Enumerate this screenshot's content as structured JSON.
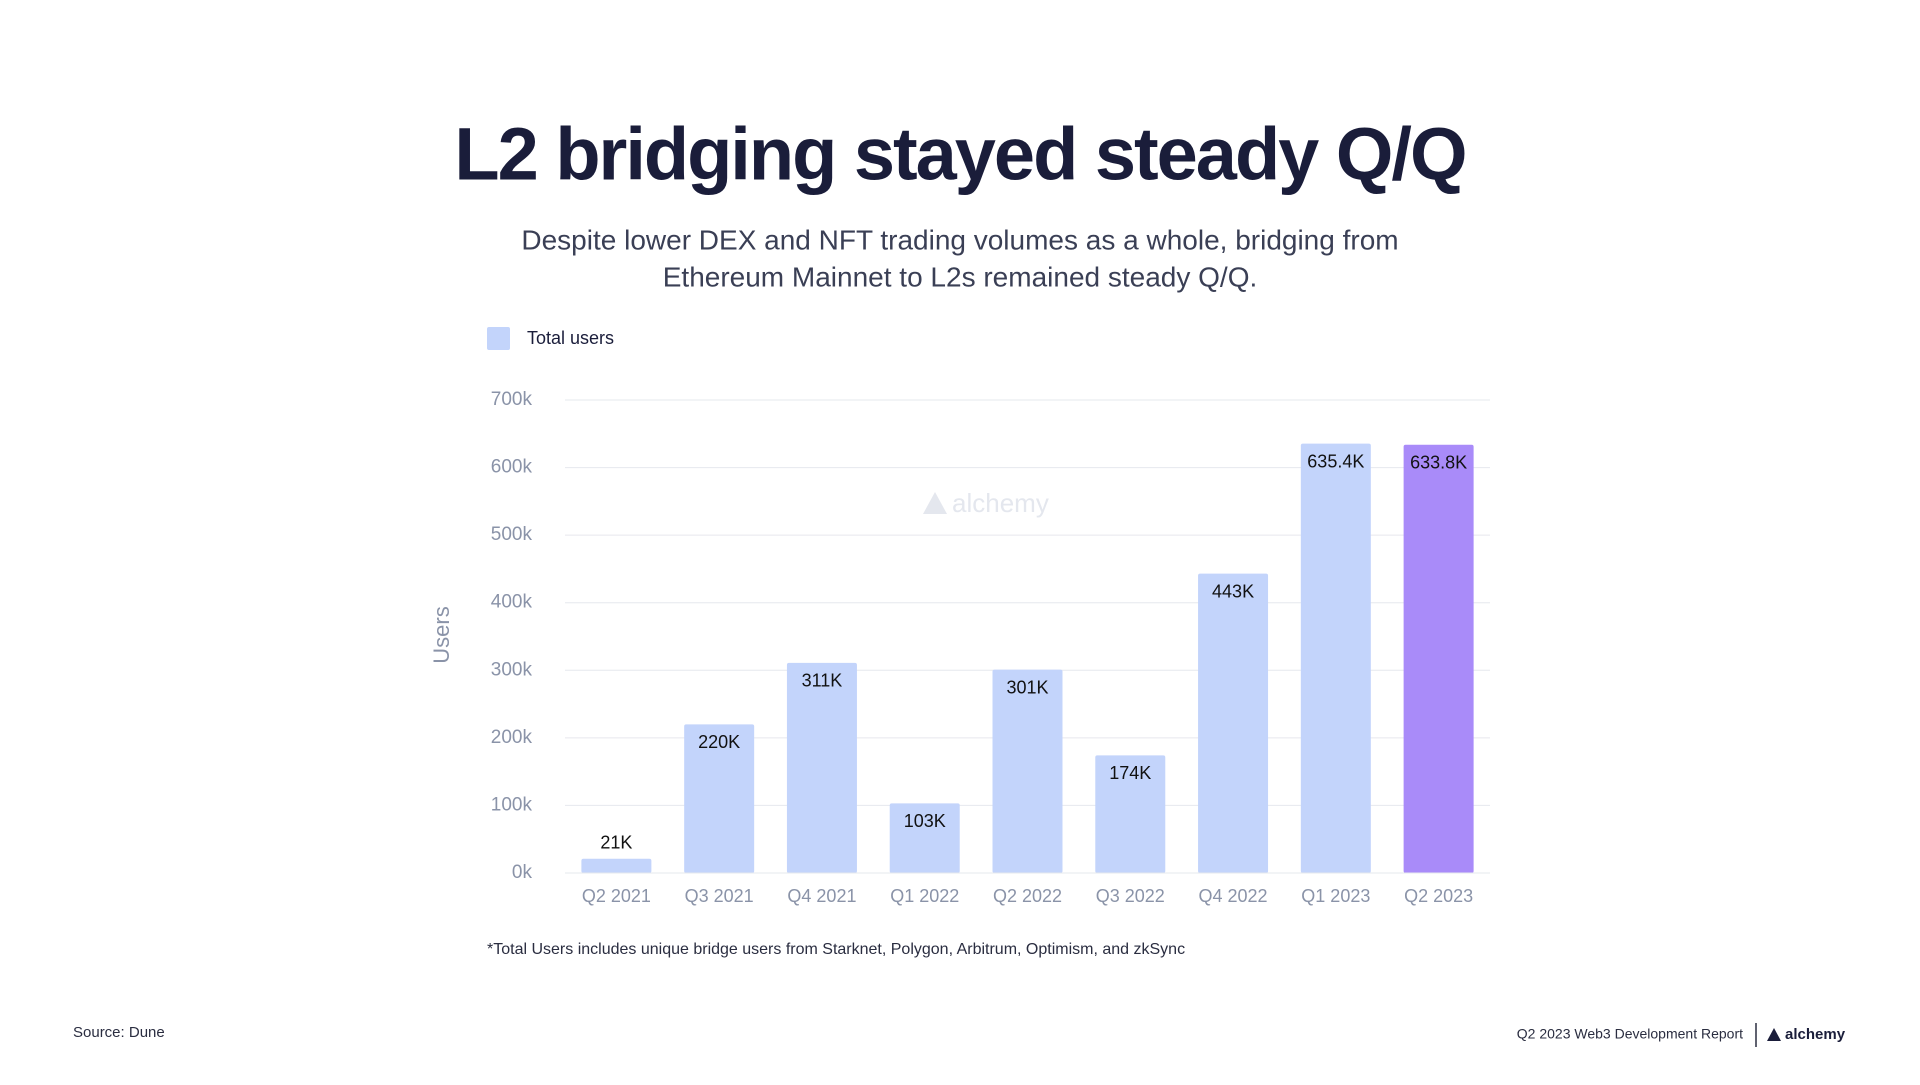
{
  "chart_data": {
    "type": "bar",
    "title": "L2 bridging stayed steady Q/Q",
    "subtitle": [
      "Despite lower DEX and NFT trading volumes as a whole, bridging from",
      "Ethereum Mainnet to L2s remained steady Q/Q."
    ],
    "y_label": "Users",
    "categories": [
      "Q2 2021",
      "Q3 2021",
      "Q4 2021",
      "Q1 2022",
      "Q2 2022",
      "Q3 2022",
      "Q4 2022",
      "Q1 2023",
      "Q2 2023"
    ],
    "series": [
      {
        "name": "Total users",
        "color": "#c3d4fb",
        "values": [
          21000,
          220000,
          311000,
          103000,
          301000,
          174000,
          443000,
          635400,
          633800
        ],
        "value_labels": [
          "21K",
          "220K",
          "311K",
          "103K",
          "301K",
          "174K",
          "443K",
          "635.4K",
          "633.8K"
        ],
        "colors": [
          "#c3d4fb",
          "#c3d4fb",
          "#c3d4fb",
          "#c3d4fb",
          "#c3d4fb",
          "#c3d4fb",
          "#c3d4fb",
          "#c3d4fb",
          "#a98bf9"
        ]
      }
    ],
    "ylim": [
      0,
      700000
    ],
    "yticks": [
      {
        "value": 0,
        "label": "0k"
      },
      {
        "value": 100000,
        "label": "100k"
      },
      {
        "value": 200000,
        "label": "200k"
      },
      {
        "value": 300000,
        "label": "300k"
      },
      {
        "value": 400000,
        "label": "400k"
      },
      {
        "value": 500000,
        "label": "500k"
      },
      {
        "value": 600000,
        "label": "600k"
      },
      {
        "value": 700000,
        "label": "700k"
      }
    ],
    "grid": true,
    "legend": "top-left",
    "watermark": "alchemy",
    "footnote": "*Total Users  includes unique bridge users from Starknet, Polygon, Arbitrum, Optimism, and zkSync",
    "source": "Source: Dune",
    "report": "Q2 2023 Web3 Development Report",
    "brand": "alchemy"
  }
}
